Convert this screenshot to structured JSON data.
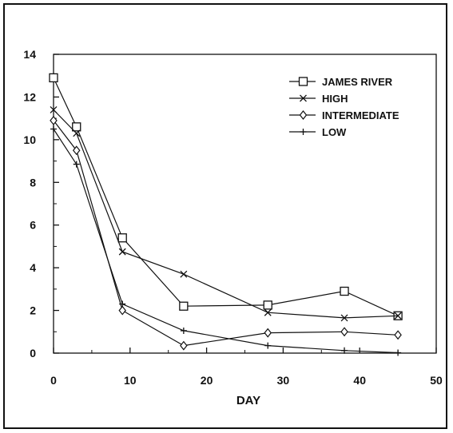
{
  "chart_data": {
    "type": "line",
    "xlabel": "DAY",
    "ylabel": "",
    "xlim": [
      0,
      50
    ],
    "ylim": [
      0,
      14
    ],
    "x_ticks": [
      "0",
      "10",
      "20",
      "30",
      "40",
      "50"
    ],
    "y_ticks": [
      "0",
      "2",
      "4",
      "6",
      "8",
      "10",
      "12",
      "14"
    ],
    "grid": false,
    "legend_position": "top-right",
    "series": [
      {
        "name": "JAMES RIVER",
        "marker": "square",
        "x": [
          0,
          3,
          9,
          17,
          28,
          38,
          45
        ],
        "y": [
          12.9,
          10.6,
          5.4,
          2.2,
          2.25,
          2.9,
          1.75
        ]
      },
      {
        "name": "HIGH",
        "marker": "x",
        "x": [
          0,
          3,
          9,
          17,
          28,
          38,
          45
        ],
        "y": [
          11.4,
          10.3,
          4.75,
          3.7,
          1.9,
          1.65,
          1.75
        ]
      },
      {
        "name": "INTERMEDIATE",
        "marker": "diamond",
        "x": [
          0,
          3,
          9,
          17,
          28,
          38,
          45
        ],
        "y": [
          10.9,
          9.5,
          2.0,
          0.35,
          0.95,
          1.0,
          0.85
        ]
      },
      {
        "name": "LOW",
        "marker": "plus",
        "x": [
          0,
          3,
          9,
          17,
          28,
          38,
          45
        ],
        "y": [
          10.5,
          8.85,
          2.3,
          1.05,
          0.35,
          0.12,
          0.02
        ]
      }
    ]
  }
}
